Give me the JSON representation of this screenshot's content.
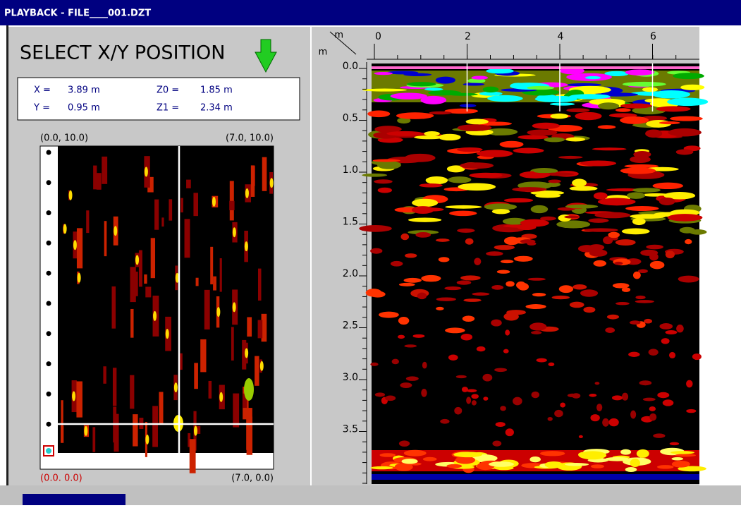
{
  "window": {
    "title": "PLAYBACK - FILE____001.DZT"
  },
  "left_panel": {
    "heading": "SELECT X/Y POSITION",
    "readout": [
      {
        "label": "X =",
        "value": "3.89 m"
      },
      {
        "label": "Y =",
        "value": "0.95 m"
      },
      {
        "label": "Z0 =",
        "value": "1.85 m"
      },
      {
        "label": "Z1 =",
        "value": "2.34 m"
      }
    ],
    "plan_view": {
      "top_left": "(0.0, 10.0)",
      "top_right": "(7.0, 10.0)",
      "bottom_left": "(0.0. 0.0)",
      "bottom_right": "(7.0, 0.0)"
    }
  },
  "profile": {
    "x_unit": "m",
    "y_unit": "m",
    "x_ticks": [
      "0",
      "2",
      "4",
      "6"
    ],
    "y_ticks": [
      "0.0",
      "0.5",
      "1.0",
      "1.5",
      "2.0",
      "2.5",
      "3.0",
      "3.5"
    ]
  }
}
